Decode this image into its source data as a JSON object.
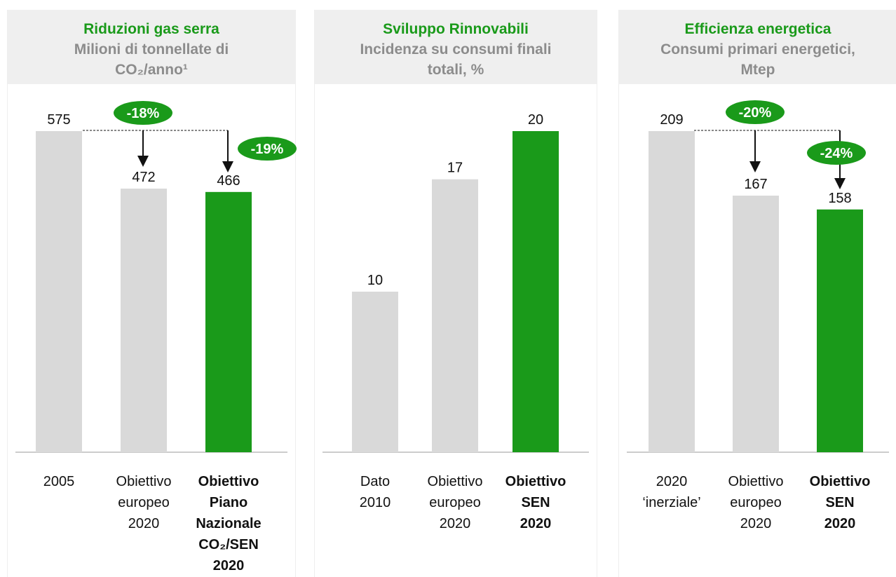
{
  "chart_data": [
    {
      "type": "bar",
      "title": "Riduzioni gas serra",
      "subtitle": "Milioni di tonnellate di\nCO₂/anno¹",
      "categories": [
        "2005",
        "Obiettivo\neuropeo\n2020",
        "Obiettivo\nPiano\nNazionale\nCO₂/SEN\n2020"
      ],
      "values": [
        575,
        472,
        466
      ],
      "colors": [
        "#d9d9d9",
        "#d9d9d9",
        "#1a9a1a"
      ],
      "ylim": [
        0,
        575
      ],
      "annotations": [
        "-18%",
        "-19%"
      ]
    },
    {
      "type": "bar",
      "title": "Sviluppo Rinnovabili",
      "subtitle": "Incidenza su consumi finali\ntotali, %",
      "categories": [
        "Dato\n2010",
        "Obiettivo\neuropeo\n2020",
        "Obiettivo\nSEN\n2020"
      ],
      "values": [
        10,
        17,
        20
      ],
      "colors": [
        "#d9d9d9",
        "#d9d9d9",
        "#1a9a1a"
      ],
      "ylim": [
        0,
        20
      ],
      "annotations": []
    },
    {
      "type": "bar",
      "title": "Efficienza energetica",
      "subtitle": "Consumi primari energetici,\nMtep",
      "categories": [
        "2020\n‘inerziale’",
        "Obiettivo\neuropeo\n2020",
        "Obiettivo\nSEN\n2020"
      ],
      "values": [
        209,
        167,
        158
      ],
      "colors": [
        "#d9d9d9",
        "#d9d9d9",
        "#1a9a1a"
      ],
      "ylim": [
        0,
        209
      ],
      "annotations": [
        "-20%",
        "-24%"
      ]
    }
  ]
}
